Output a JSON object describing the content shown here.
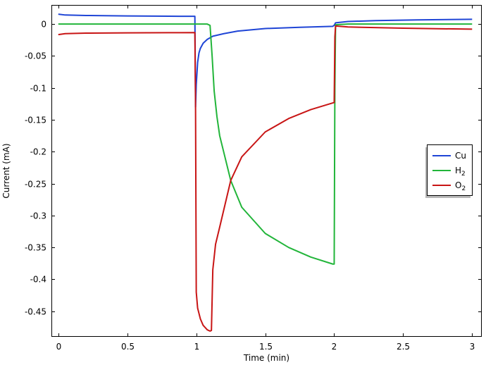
{
  "chart_data": {
    "type": "line",
    "xlabel": "Time (min)",
    "ylabel": "Current (mA)",
    "xlim": [
      -0.05,
      3.07
    ],
    "ylim": [
      -0.49,
      0.03
    ],
    "x_ticks": [
      0,
      0.5,
      1,
      1.5,
      2,
      2.5,
      3
    ],
    "x_tick_labels": [
      "0",
      "0.5",
      "1",
      "1.5",
      "2",
      "2.5",
      "3"
    ],
    "y_ticks": [
      0,
      -0.05,
      -0.1,
      -0.15,
      -0.2,
      -0.25,
      -0.3,
      -0.35,
      -0.4,
      -0.45
    ],
    "y_tick_labels": [
      "0",
      "-0.05",
      "-0.1",
      "-0.15",
      "-0.2",
      "-0.25",
      "-0.3",
      "-0.35",
      "-0.4",
      "-0.45"
    ],
    "grid": false,
    "legend_position": "right",
    "series": [
      {
        "name": "Cu",
        "color": "#1f45d6",
        "points": [
          [
            0.0,
            0.0155
          ],
          [
            0.05,
            0.0142
          ],
          [
            0.2,
            0.0135
          ],
          [
            0.5,
            0.0128
          ],
          [
            0.8,
            0.0123
          ],
          [
            0.99,
            0.0122
          ],
          [
            0.995,
            -0.13
          ],
          [
            1.0,
            -0.095
          ],
          [
            1.01,
            -0.06
          ],
          [
            1.02,
            -0.045
          ],
          [
            1.03,
            -0.038
          ],
          [
            1.05,
            -0.03
          ],
          [
            1.08,
            -0.024
          ],
          [
            1.12,
            -0.019
          ],
          [
            1.2,
            -0.015
          ],
          [
            1.3,
            -0.011
          ],
          [
            1.5,
            -0.007
          ],
          [
            1.75,
            -0.005
          ],
          [
            1.99,
            -0.0035
          ],
          [
            2.0,
            -0.002
          ],
          [
            2.01,
            0.002
          ],
          [
            2.1,
            0.004
          ],
          [
            2.3,
            0.0055
          ],
          [
            2.6,
            0.0065
          ],
          [
            3.0,
            0.0075
          ]
        ]
      },
      {
        "name": "H2",
        "color": "#22b53a",
        "points": [
          [
            0.0,
            0.0
          ],
          [
            0.5,
            0.0
          ],
          [
            1.0,
            0.0
          ],
          [
            1.08,
            0.0
          ],
          [
            1.1,
            -0.002
          ],
          [
            1.115,
            -0.05
          ],
          [
            1.13,
            -0.105
          ],
          [
            1.15,
            -0.145
          ],
          [
            1.17,
            -0.175
          ],
          [
            1.25,
            -0.245
          ],
          [
            1.33,
            -0.287
          ],
          [
            1.5,
            -0.328
          ],
          [
            1.67,
            -0.35
          ],
          [
            1.83,
            -0.365
          ],
          [
            1.99,
            -0.376
          ],
          [
            2.0,
            -0.376
          ],
          [
            2.005,
            -0.1
          ],
          [
            2.01,
            -0.001
          ],
          [
            2.1,
            0.0
          ],
          [
            3.0,
            0.0
          ]
        ]
      },
      {
        "name": "O2",
        "color": "#c81515",
        "points": [
          [
            0.0,
            -0.0165
          ],
          [
            0.05,
            -0.015
          ],
          [
            0.2,
            -0.0142
          ],
          [
            0.5,
            -0.0138
          ],
          [
            0.8,
            -0.0135
          ],
          [
            0.99,
            -0.0133
          ],
          [
            0.995,
            -0.135
          ],
          [
            1.0,
            -0.42
          ],
          [
            1.01,
            -0.445
          ],
          [
            1.03,
            -0.462
          ],
          [
            1.05,
            -0.472
          ],
          [
            1.08,
            -0.479
          ],
          [
            1.1,
            -0.481
          ],
          [
            1.11,
            -0.48
          ],
          [
            1.12,
            -0.385
          ],
          [
            1.14,
            -0.345
          ],
          [
            1.17,
            -0.318
          ],
          [
            1.25,
            -0.245
          ],
          [
            1.33,
            -0.208
          ],
          [
            1.5,
            -0.169
          ],
          [
            1.67,
            -0.148
          ],
          [
            1.83,
            -0.134
          ],
          [
            1.99,
            -0.1235
          ],
          [
            2.0,
            -0.123
          ],
          [
            2.005,
            -0.02
          ],
          [
            2.01,
            -0.003
          ],
          [
            2.1,
            -0.0045
          ],
          [
            2.5,
            -0.0065
          ],
          [
            3.0,
            -0.008
          ]
        ]
      }
    ],
    "legend": [
      {
        "label": "Cu",
        "sub": ""
      },
      {
        "label": "H",
        "sub": "2"
      },
      {
        "label": "O",
        "sub": "2"
      }
    ]
  }
}
